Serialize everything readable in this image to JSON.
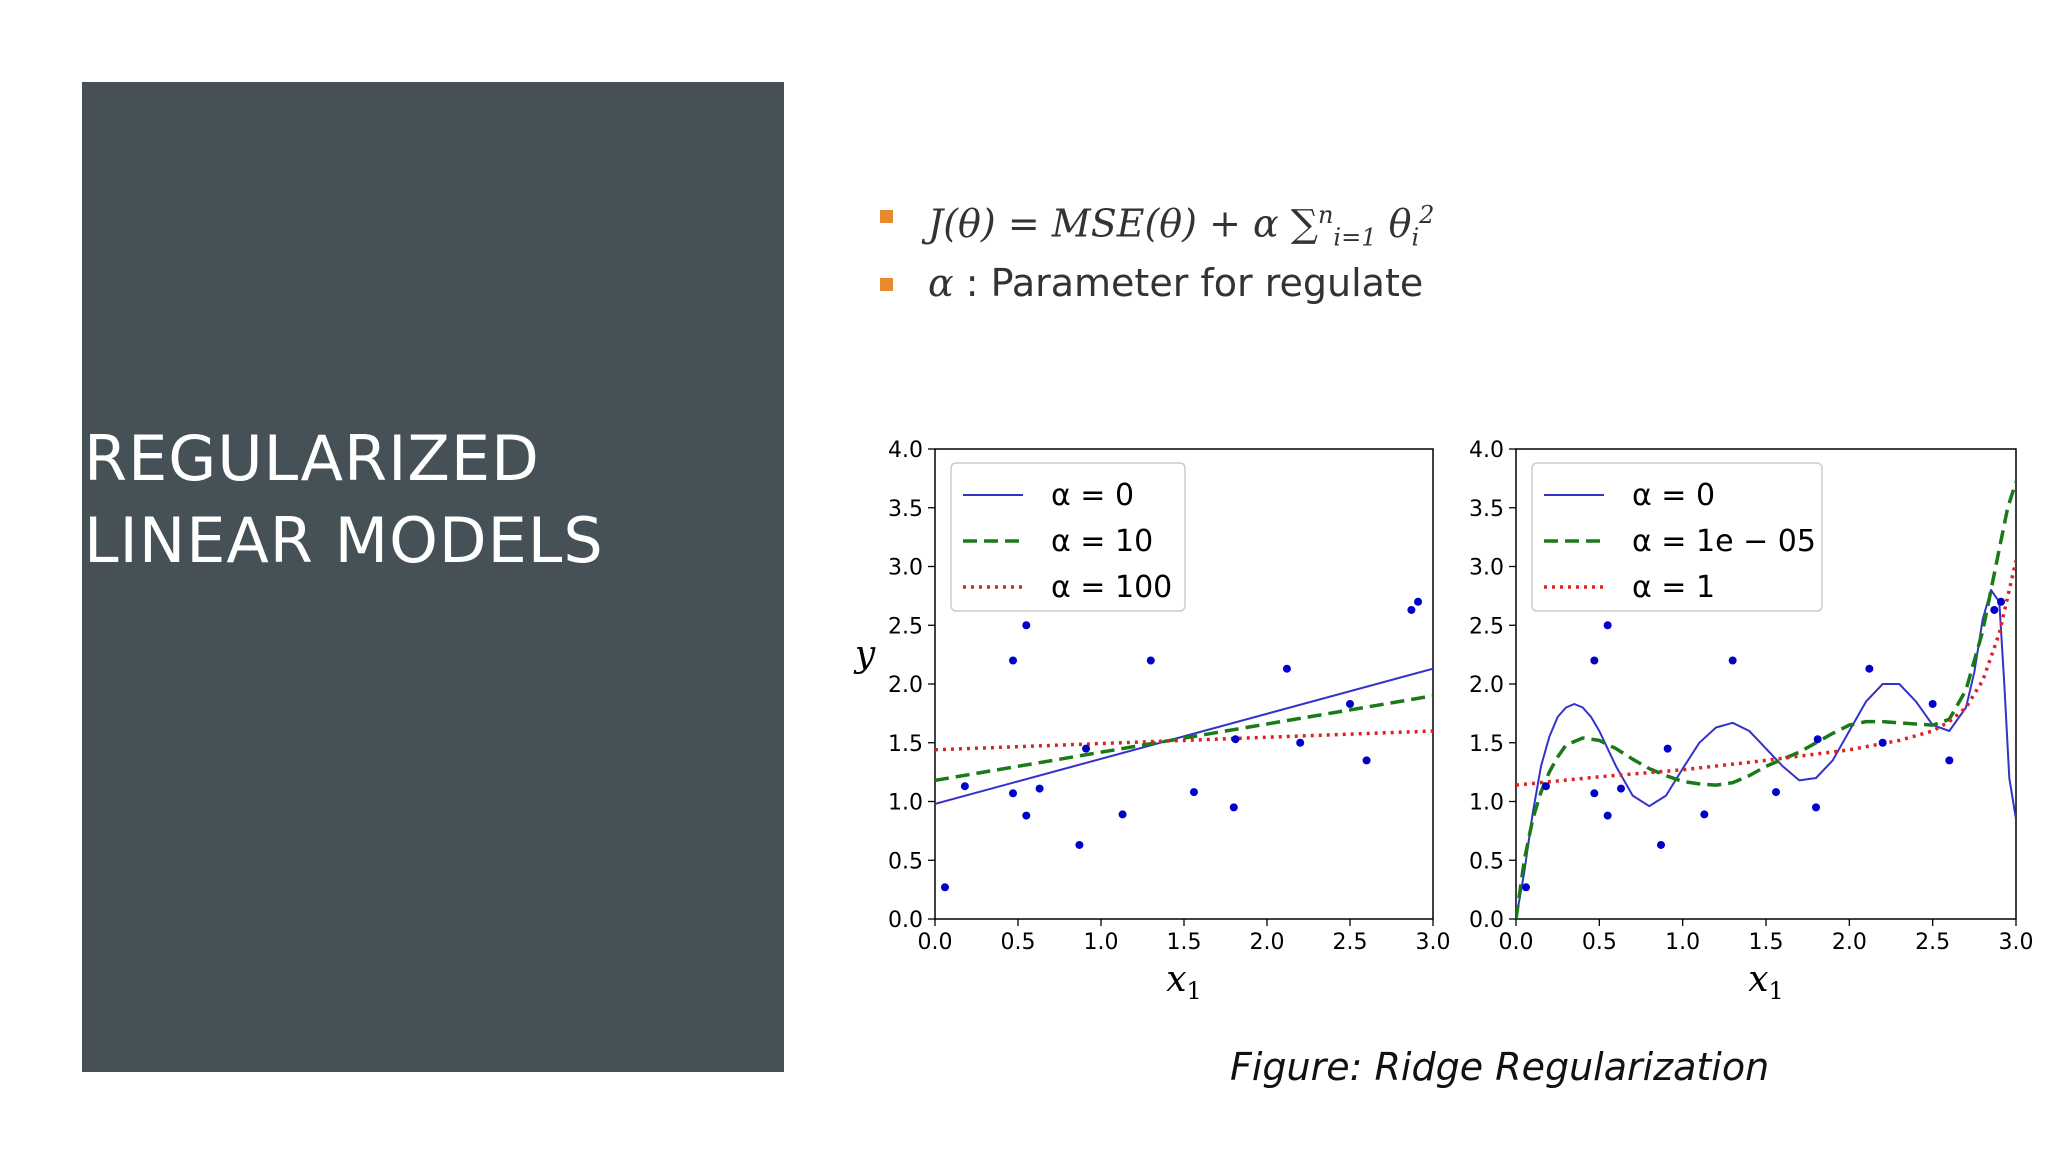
{
  "slide": {
    "title_lines": [
      "REGULARIZED",
      "LINEAR MODELS"
    ],
    "caption": "Figure: Ridge Regularization",
    "accent_color": "#e68a2e",
    "panel_color": "#465157"
  },
  "bullets": [
    {
      "formula": {
        "lhs": "J(θ)",
        "eq": "=",
        "mse": "MSE(θ)",
        "plus": "+",
        "alpha": "α",
        "sum": "∑",
        "sum_sub": "i=1",
        "sum_sup": "n",
        "theta": "θ",
        "theta_sub": "i",
        "theta_sup": "2"
      }
    },
    {
      "symbol": "α",
      "text": " : Parameter for regulate"
    }
  ],
  "chart_data": [
    {
      "type": "line",
      "xlabel": "x1",
      "ylabel": "y",
      "xlim": [
        0.0,
        3.0
      ],
      "ylim": [
        0.0,
        4.0
      ],
      "xticks": [
        "0.0",
        "0.5",
        "1.0",
        "1.5",
        "2.0",
        "2.5",
        "3.0"
      ],
      "yticks": [
        "0.0",
        "0.5",
        "1.0",
        "1.5",
        "2.0",
        "2.5",
        "3.0",
        "3.5",
        "4.0"
      ],
      "grid": false,
      "legend_position": "upper-left",
      "scatter": {
        "color": "#0000cc",
        "points": [
          [
            0.06,
            0.27
          ],
          [
            0.18,
            1.13
          ],
          [
            0.47,
            2.2
          ],
          [
            0.47,
            1.07
          ],
          [
            0.55,
            2.5
          ],
          [
            0.55,
            0.88
          ],
          [
            0.63,
            1.11
          ],
          [
            0.87,
            0.63
          ],
          [
            0.91,
            1.45
          ],
          [
            1.13,
            0.89
          ],
          [
            1.3,
            2.2
          ],
          [
            1.56,
            1.08
          ],
          [
            1.8,
            0.95
          ],
          [
            1.81,
            1.53
          ],
          [
            2.12,
            2.13
          ],
          [
            2.2,
            1.5
          ],
          [
            2.5,
            1.83
          ],
          [
            2.6,
            1.35
          ],
          [
            2.87,
            2.63
          ],
          [
            2.91,
            2.7
          ]
        ]
      },
      "series": [
        {
          "name": "α = 0",
          "color": "#3333cc",
          "style": "solid",
          "x": [
            0.0,
            3.0
          ],
          "y": [
            0.98,
            2.13
          ]
        },
        {
          "name": "α = 10",
          "color": "#1a7a1a",
          "style": "dashed",
          "x": [
            0.0,
            3.0
          ],
          "y": [
            1.18,
            1.9
          ]
        },
        {
          "name": "α = 100",
          "color": "#dd2222",
          "style": "dotted",
          "x": [
            0.0,
            3.0
          ],
          "y": [
            1.44,
            1.6
          ]
        }
      ]
    },
    {
      "type": "line",
      "xlabel": "x1",
      "ylabel": "",
      "xlim": [
        0.0,
        3.0
      ],
      "ylim": [
        0.0,
        4.0
      ],
      "xticks": [
        "0.0",
        "0.5",
        "1.0",
        "1.5",
        "2.0",
        "2.5",
        "3.0"
      ],
      "yticks": [
        "0.0",
        "0.5",
        "1.0",
        "1.5",
        "2.0",
        "2.5",
        "3.0",
        "3.5",
        "4.0"
      ],
      "grid": false,
      "legend_position": "upper-left",
      "scatter": {
        "color": "#0000cc",
        "points": [
          [
            0.06,
            0.27
          ],
          [
            0.18,
            1.13
          ],
          [
            0.47,
            2.2
          ],
          [
            0.47,
            1.07
          ],
          [
            0.55,
            2.5
          ],
          [
            0.55,
            0.88
          ],
          [
            0.63,
            1.11
          ],
          [
            0.87,
            0.63
          ],
          [
            0.91,
            1.45
          ],
          [
            1.13,
            0.89
          ],
          [
            1.3,
            2.2
          ],
          [
            1.56,
            1.08
          ],
          [
            1.8,
            0.95
          ],
          [
            1.81,
            1.53
          ],
          [
            2.12,
            2.13
          ],
          [
            2.2,
            1.5
          ],
          [
            2.5,
            1.83
          ],
          [
            2.6,
            1.35
          ],
          [
            2.87,
            2.63
          ],
          [
            2.91,
            2.7
          ]
        ]
      },
      "series": [
        {
          "name": "α = 0",
          "color": "#3333cc",
          "style": "solid",
          "x": [
            0.0,
            0.05,
            0.1,
            0.15,
            0.2,
            0.25,
            0.3,
            0.35,
            0.4,
            0.45,
            0.5,
            0.6,
            0.7,
            0.8,
            0.9,
            1.0,
            1.1,
            1.2,
            1.3,
            1.4,
            1.5,
            1.6,
            1.7,
            1.8,
            1.9,
            2.0,
            2.1,
            2.2,
            2.3,
            2.4,
            2.5,
            2.6,
            2.7,
            2.75,
            2.8,
            2.85,
            2.9,
            2.93,
            2.96,
            3.0
          ],
          "y": [
            0.0,
            0.4,
            0.9,
            1.3,
            1.55,
            1.72,
            1.8,
            1.83,
            1.8,
            1.72,
            1.6,
            1.3,
            1.05,
            0.96,
            1.05,
            1.28,
            1.5,
            1.63,
            1.67,
            1.6,
            1.45,
            1.3,
            1.18,
            1.2,
            1.35,
            1.6,
            1.85,
            2.0,
            2.0,
            1.85,
            1.65,
            1.6,
            1.8,
            2.1,
            2.55,
            2.8,
            2.7,
            2.0,
            1.2,
            0.85
          ]
        },
        {
          "name": "α = 1e − 05",
          "color": "#1a7a1a",
          "style": "dashed",
          "x": [
            0.0,
            0.05,
            0.1,
            0.15,
            0.2,
            0.25,
            0.3,
            0.4,
            0.5,
            0.6,
            0.7,
            0.8,
            0.9,
            1.0,
            1.1,
            1.2,
            1.3,
            1.4,
            1.5,
            1.6,
            1.7,
            1.8,
            1.9,
            2.0,
            2.1,
            2.2,
            2.3,
            2.4,
            2.5,
            2.6,
            2.7,
            2.8,
            2.85,
            2.9,
            2.95,
            3.0
          ],
          "y": [
            0.0,
            0.5,
            0.85,
            1.08,
            1.25,
            1.38,
            1.48,
            1.54,
            1.52,
            1.45,
            1.36,
            1.28,
            1.22,
            1.17,
            1.15,
            1.14,
            1.16,
            1.22,
            1.3,
            1.36,
            1.42,
            1.5,
            1.58,
            1.65,
            1.68,
            1.68,
            1.67,
            1.66,
            1.65,
            1.7,
            1.95,
            2.45,
            2.8,
            3.15,
            3.5,
            3.72
          ]
        },
        {
          "name": "α = 1",
          "color": "#dd2222",
          "style": "dotted",
          "x": [
            0.0,
            0.5,
            1.0,
            1.5,
            2.0,
            2.3,
            2.5,
            2.6,
            2.7,
            2.8,
            2.9,
            3.0
          ],
          "y": [
            1.14,
            1.21,
            1.27,
            1.35,
            1.44,
            1.52,
            1.6,
            1.68,
            1.8,
            2.03,
            2.43,
            3.05
          ]
        }
      ]
    }
  ]
}
